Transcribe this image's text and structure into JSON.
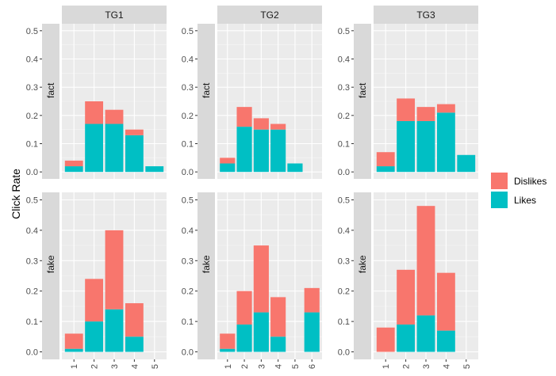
{
  "chart_data": {
    "type": "bar",
    "stacked": true,
    "ylabel": "Click Rate",
    "xlabel": "",
    "ylim": [
      0,
      0.5
    ],
    "yticks": [
      0.0,
      0.1,
      0.2,
      0.3,
      0.4,
      0.5
    ],
    "ytick_labels": [
      "0.0",
      "0.1",
      "0.2",
      "0.3",
      "0.4",
      "0.5"
    ],
    "legend": {
      "placement": "right",
      "entries": [
        {
          "name": "Dislikes",
          "color": "#F8766D"
        },
        {
          "name": "Likes",
          "color": "#00BFC4"
        }
      ]
    },
    "columns": [
      "TG1",
      "TG2",
      "TG3"
    ],
    "rows": [
      "fact",
      "fake"
    ],
    "panels": [
      {
        "row": "fact",
        "column": "TG1",
        "categories": [
          "1",
          "2",
          "3",
          "4",
          "5"
        ],
        "series": [
          {
            "name": "Likes",
            "values": [
              0.02,
              0.17,
              0.17,
              0.13,
              0.02
            ]
          },
          {
            "name": "Dislikes",
            "values": [
              0.02,
              0.08,
              0.05,
              0.02,
              0.0
            ]
          }
        ]
      },
      {
        "row": "fact",
        "column": "TG2",
        "categories": [
          "1",
          "2",
          "3",
          "4",
          "5",
          "6"
        ],
        "series": [
          {
            "name": "Likes",
            "values": [
              0.03,
              0.16,
              0.15,
              0.15,
              0.03,
              0.0
            ]
          },
          {
            "name": "Dislikes",
            "values": [
              0.02,
              0.07,
              0.04,
              0.02,
              0.0,
              0.0
            ]
          }
        ]
      },
      {
        "row": "fact",
        "column": "TG3",
        "categories": [
          "1",
          "2",
          "3",
          "4",
          "5"
        ],
        "series": [
          {
            "name": "Likes",
            "values": [
              0.02,
              0.18,
              0.18,
              0.21,
              0.06
            ]
          },
          {
            "name": "Dislikes",
            "values": [
              0.05,
              0.08,
              0.05,
              0.03,
              0.0
            ]
          }
        ]
      },
      {
        "row": "fake",
        "column": "TG1",
        "categories": [
          "1",
          "2",
          "3",
          "4",
          "5"
        ],
        "series": [
          {
            "name": "Likes",
            "values": [
              0.01,
              0.1,
              0.14,
              0.05,
              0.0
            ]
          },
          {
            "name": "Dislikes",
            "values": [
              0.05,
              0.14,
              0.26,
              0.11,
              0.0
            ]
          }
        ]
      },
      {
        "row": "fake",
        "column": "TG2",
        "categories": [
          "1",
          "2",
          "3",
          "4",
          "5",
          "6"
        ],
        "series": [
          {
            "name": "Likes",
            "values": [
              0.01,
              0.09,
              0.13,
              0.05,
              0.0,
              0.13
            ]
          },
          {
            "name": "Dislikes",
            "values": [
              0.05,
              0.11,
              0.22,
              0.13,
              0.0,
              0.08
            ]
          }
        ]
      },
      {
        "row": "fake",
        "column": "TG3",
        "categories": [
          "1",
          "2",
          "3",
          "4",
          "5"
        ],
        "series": [
          {
            "name": "Likes",
            "values": [
              0.0,
              0.09,
              0.12,
              0.07,
              0.0
            ]
          },
          {
            "name": "Dislikes",
            "values": [
              0.08,
              0.18,
              0.36,
              0.19,
              0.0
            ]
          }
        ]
      }
    ]
  }
}
